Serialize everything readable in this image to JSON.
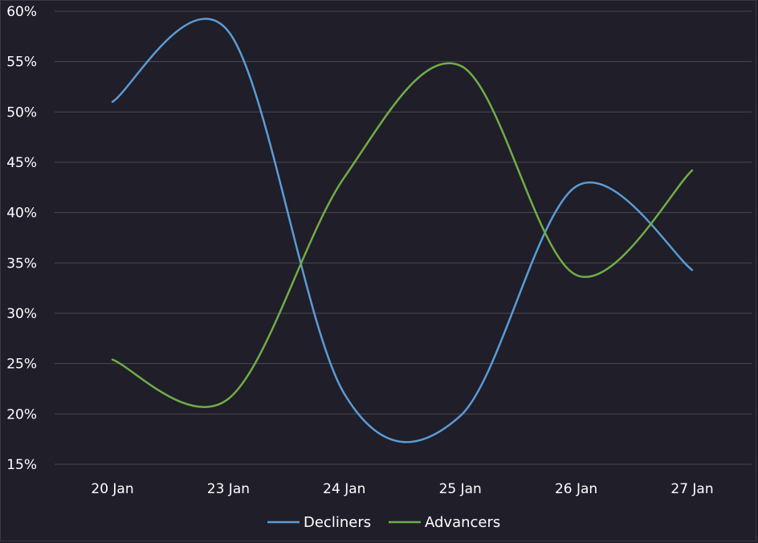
{
  "chart_data": {
    "type": "line",
    "categories": [
      "20 Jan",
      "23 Jan",
      "24 Jan",
      "25 Jan",
      "26 Jan",
      "27 Jan"
    ],
    "series": [
      {
        "name": "Decliners",
        "color": "#5b9bd5",
        "values": [
          51.0,
          58.0,
          22.0,
          19.8,
          42.6,
          34.3
        ]
      },
      {
        "name": "Advancers",
        "color": "#70ad47",
        "values": [
          25.4,
          21.5,
          43.5,
          54.6,
          33.8,
          44.2
        ]
      }
    ],
    "y_ticks": [
      "60%",
      "55%",
      "50%",
      "45%",
      "40%",
      "35%",
      "30%",
      "25%",
      "20%",
      "15%"
    ],
    "ylim": [
      15,
      60
    ],
    "y_unit": "%",
    "grid": true,
    "legend_position": "bottom",
    "title": "",
    "xlabel": "",
    "ylabel": ""
  },
  "colors": {
    "background": "#1f1e29",
    "grid": "#4a4a52",
    "text": "#ffffff"
  }
}
